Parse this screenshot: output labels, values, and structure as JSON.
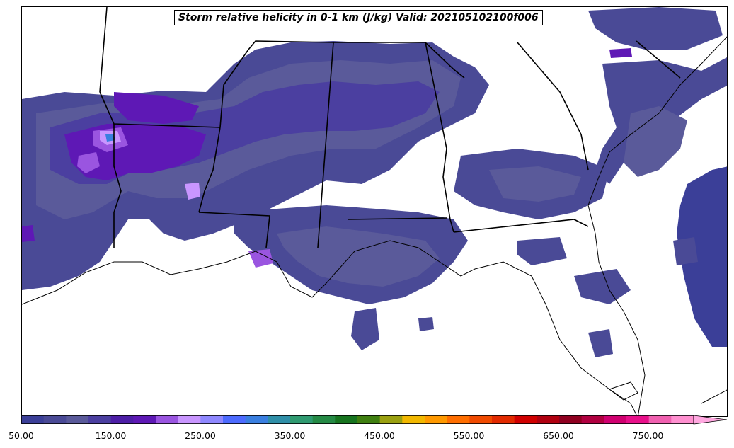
{
  "title": "Storm relative helicity in 0-1 km (J/kg) Valid: 202105102100f006",
  "colorbar": {
    "tick_labels": [
      "50.00",
      "150.00",
      "250.00",
      "350.00",
      "450.00",
      "550.00",
      "650.00",
      "750.00"
    ],
    "range": [
      50,
      800
    ],
    "extend": "max",
    "colors": [
      "#3b3f98",
      "#4a4a96",
      "#5a5a9a",
      "#4b3fa0",
      "#4d1ea6",
      "#5e18b5",
      "#9a55e0",
      "#c996ff",
      "#8f88ff",
      "#4d6bff",
      "#3a7fe0",
      "#2f8fa8",
      "#2f9a70",
      "#258a45",
      "#17741f",
      "#3f7f10",
      "#9aa010",
      "#f2b800",
      "#ff9900",
      "#ff6e00",
      "#f04a00",
      "#e22a00",
      "#d00000",
      "#b00010",
      "#8f0020",
      "#b00040",
      "#d00070",
      "#e8108a",
      "#f060b0",
      "#ff90d0"
    ],
    "extend_color": "#ffa8e0"
  }
}
